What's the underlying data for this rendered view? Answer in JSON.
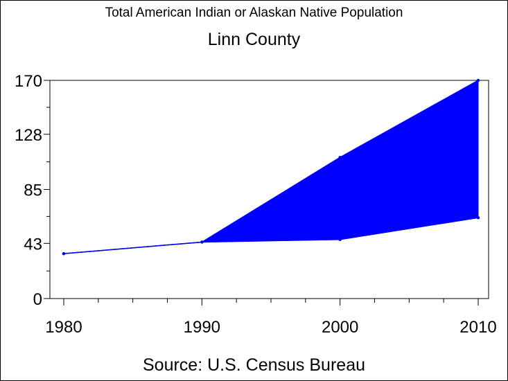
{
  "chart_data": {
    "type": "area",
    "title": "Total American Indian or Alaskan Native Population",
    "subtitle": "Linn County",
    "source": "Source: U.S. Census Bureau",
    "x": [
      1980,
      1990,
      2000,
      2010
    ],
    "x_tick_labels": [
      "1980",
      "1990",
      "2000",
      "2010"
    ],
    "y_tick_values": [
      0,
      43,
      85,
      128,
      170
    ],
    "y_tick_labels": [
      "0",
      "43",
      "85",
      "128",
      "170"
    ],
    "xlim": [
      1980,
      2010
    ],
    "ylim": [
      0,
      170
    ],
    "grid": false,
    "series": [
      {
        "values": [
          35,
          44,
          46,
          63
        ],
        "color": "#0000ff"
      },
      {
        "values": [
          35,
          44,
          110,
          170
        ],
        "color": "#0000ff"
      }
    ],
    "fill_between_series": {
      "from_x": 1990,
      "color": "#0000ff"
    }
  }
}
